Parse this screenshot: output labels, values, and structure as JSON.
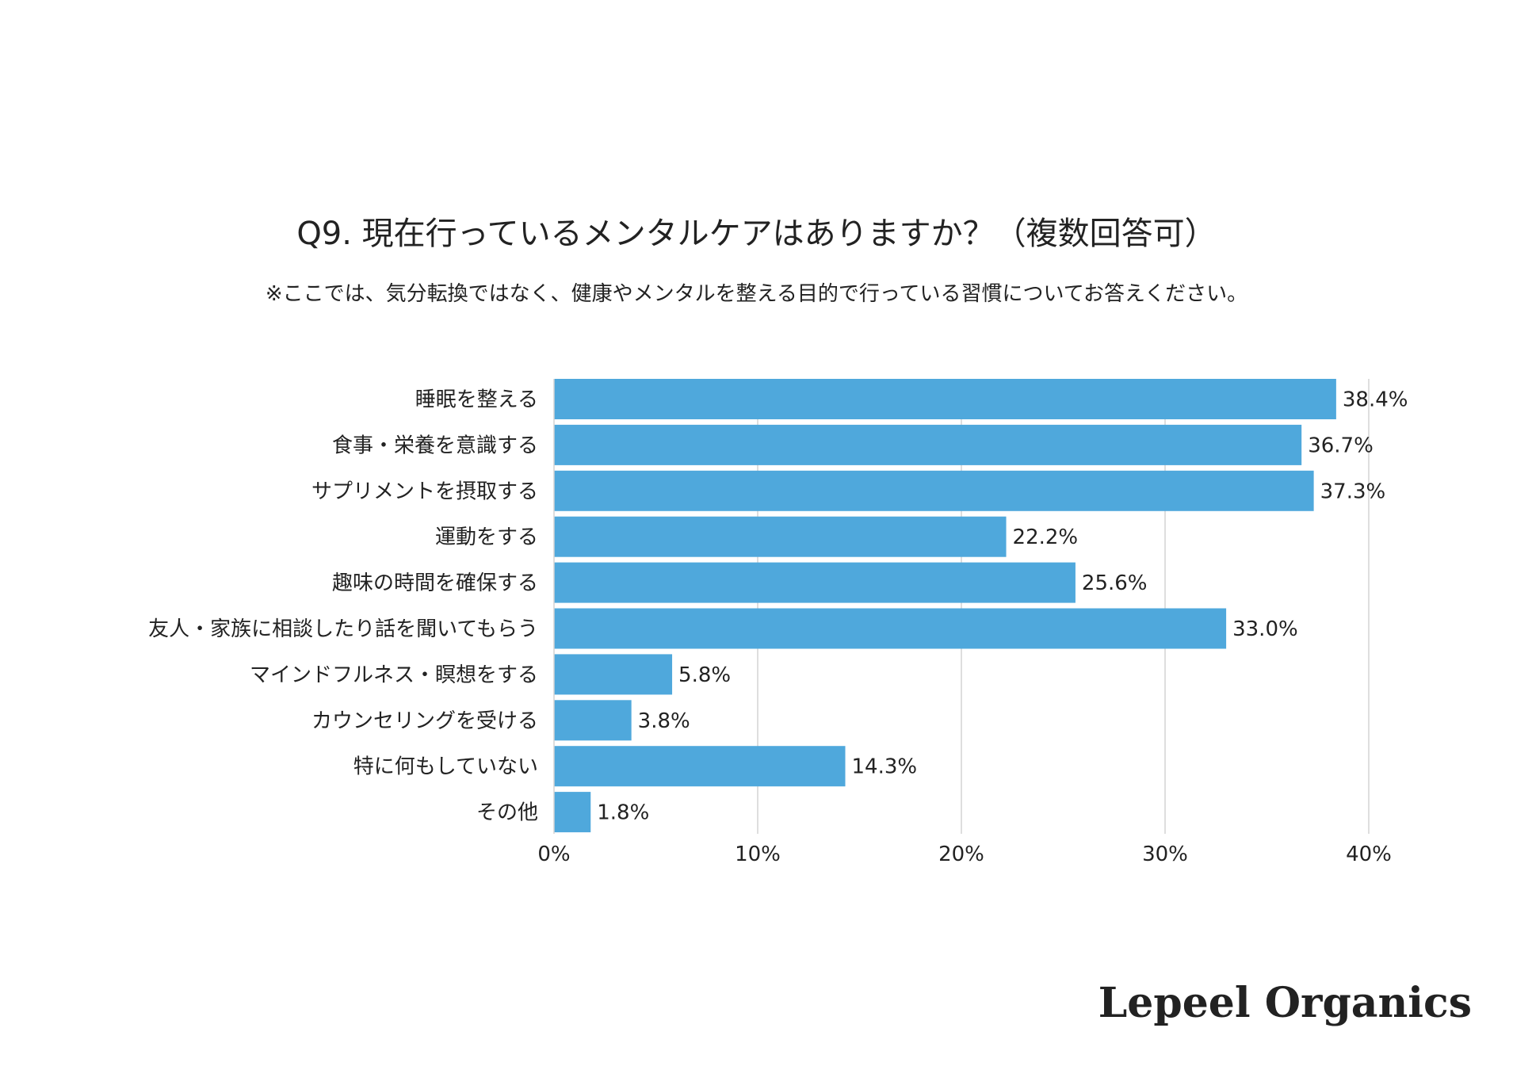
{
  "chart_data": {
    "type": "bar",
    "orientation": "horizontal",
    "title": "Q9. 現在行っているメンタルケアはありますか？（複数回答可）",
    "subtitle": "※ここでは、気分転換ではなく、健康やメンタルを整える目的で行っている習慣についてお答えください。",
    "categories": [
      "睡眠を整える",
      "食事・栄養を意識する",
      "サプリメントを摂取する",
      "運動をする",
      "趣味の時間を確保する",
      "友人・家族に相談したり話を聞いてもらう",
      "マインドフルネス・瞑想をする",
      "カウンセリングを受ける",
      "特に何もしていない",
      "その他"
    ],
    "values": [
      38.4,
      36.7,
      37.3,
      22.2,
      25.6,
      33.0,
      5.8,
      3.8,
      14.3,
      1.8
    ],
    "value_labels": [
      "38.4%",
      "36.7%",
      "37.3%",
      "22.2%",
      "25.6%",
      "33.0%",
      "5.8%",
      "3.8%",
      "14.3%",
      "1.8%"
    ],
    "xlim": [
      0,
      40
    ],
    "xticks": [
      0,
      10,
      20,
      30,
      40
    ],
    "xtick_labels": [
      "0%",
      "10%",
      "20%",
      "30%",
      "40%"
    ],
    "xlabel": "",
    "ylabel": "",
    "grid": true,
    "bar_color": "#4fa8dc",
    "grid_color": "#d4d4d4"
  },
  "brand": {
    "logo_text": "Lepeel Organics"
  }
}
